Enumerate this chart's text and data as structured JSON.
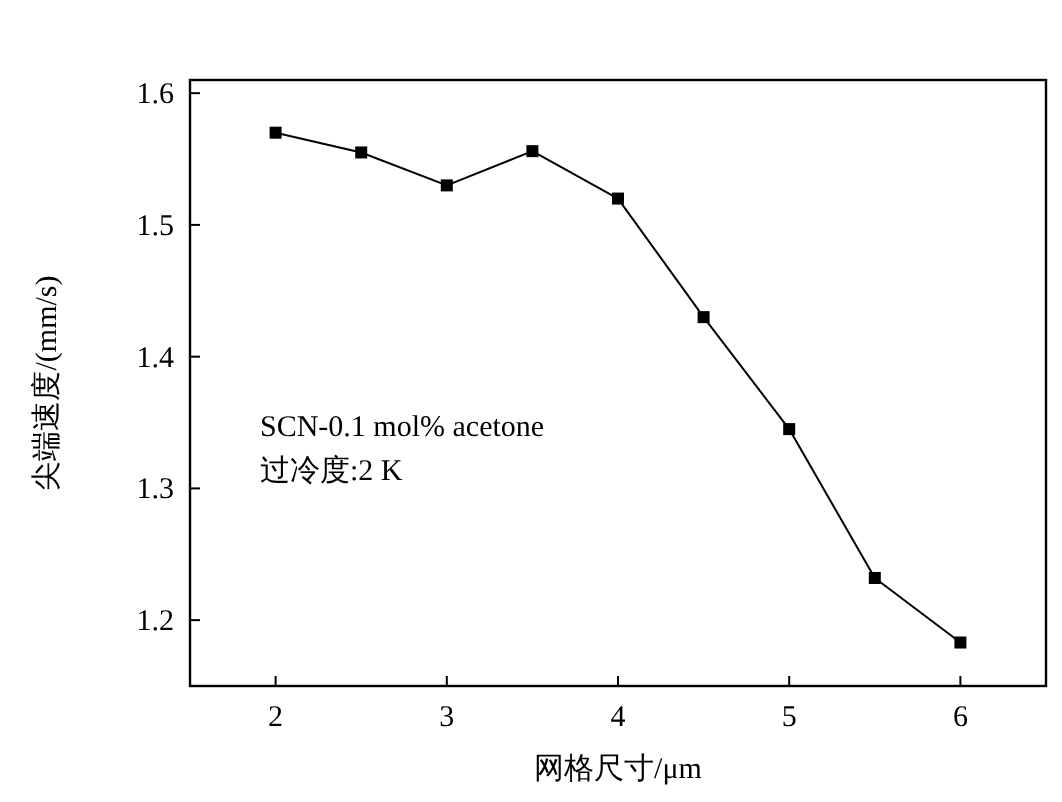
{
  "chart_data": {
    "type": "line",
    "xlabel": "网格尺寸/μm",
    "ylabel": "尖端速度/(mm/s)",
    "x": [
      2,
      2.5,
      3,
      3.5,
      4,
      4.5,
      5,
      5.5,
      6
    ],
    "series": [
      {
        "color": "#000000",
        "values": [
          1.57,
          1.555,
          1.53,
          1.556,
          1.52,
          1.43,
          1.345,
          1.232,
          1.183
        ]
      }
    ],
    "xlim": [
      1.5,
      6.5
    ],
    "xticks": [
      2,
      3,
      4,
      5,
      6
    ],
    "ylim": [
      1.15,
      1.61
    ],
    "yticks": [
      {
        "value": 1.2,
        "label": "1.2"
      },
      {
        "value": 1.3,
        "label": "1.3"
      },
      {
        "value": 1.4,
        "label": "1.4"
      },
      {
        "value": 1.5,
        "label": "1.5"
      },
      {
        "value": 1.6,
        "label": "1.6"
      }
    ],
    "marker": "square",
    "line_style": "solid",
    "annotations": [
      "SCN-0.1 mol% acetone",
      "过冷度:2 K"
    ]
  }
}
